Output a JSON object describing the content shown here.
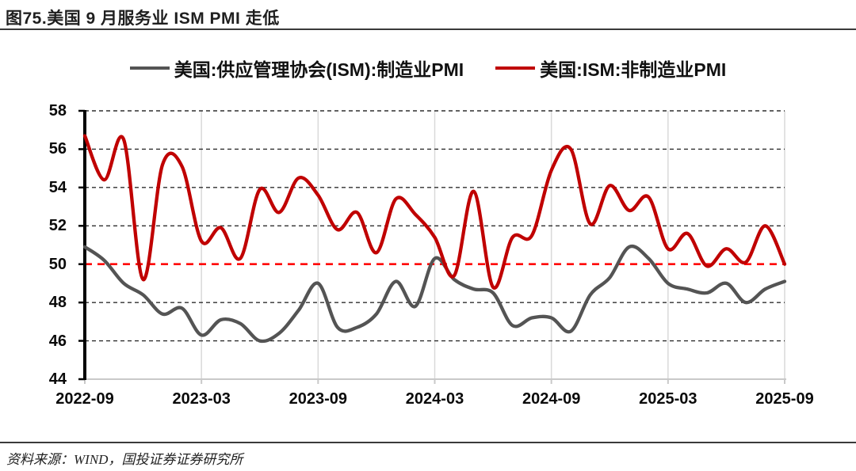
{
  "header": {
    "title": "图75.美国 9 月服务业 ISM PMI 走低"
  },
  "legend": [
    {
      "label": "美国:供应管理协会(ISM):制造业PMI",
      "color": "#545454"
    },
    {
      "label": "美国:ISM:非制造业PMI",
      "color": "#C00000"
    }
  ],
  "footer": {
    "source": "资料来源：WIND，国投证券证券研究所"
  },
  "colors": {
    "manufacturing_line": "#545454",
    "services_line": "#C00000",
    "reference_line": "#FF0000",
    "dashed_grid": "#2e2e2e",
    "light_grid": "#d9d9d9",
    "axis_black": "#000000",
    "axis_bottom": "#c9c9c9"
  },
  "chart_data": {
    "type": "line",
    "title": "图75.美国 9 月服务业 ISM PMI 走低",
    "xlabel": "",
    "ylabel": "",
    "ylim": [
      44,
      58
    ],
    "grid": "horizontal-dashed",
    "legend_position": "top-center",
    "smoothing": "spline",
    "x": [
      "2022-09",
      "2022-10",
      "2022-11",
      "2022-12",
      "2023-01",
      "2023-02",
      "2023-03",
      "2023-04",
      "2023-05",
      "2023-06",
      "2023-07",
      "2023-08",
      "2023-09",
      "2023-10",
      "2023-11",
      "2023-12",
      "2024-01",
      "2024-02",
      "2024-03",
      "2024-04",
      "2024-05",
      "2024-06",
      "2024-07",
      "2024-08",
      "2024-09",
      "2024-10",
      "2024-11",
      "2024-12",
      "2025-01",
      "2025-02",
      "2025-03",
      "2025-04",
      "2025-05",
      "2025-06",
      "2025-07",
      "2025-08",
      "2025-09"
    ],
    "series": [
      {
        "name": "美国:供应管理协会(ISM):制造业PMI",
        "color": "#545454",
        "values": [
          50.9,
          50.2,
          49.0,
          48.4,
          47.4,
          47.7,
          46.3,
          47.1,
          46.9,
          46.0,
          46.4,
          47.6,
          49.0,
          46.7,
          46.7,
          47.4,
          49.1,
          47.8,
          50.3,
          49.2,
          48.7,
          48.5,
          46.8,
          47.2,
          47.2,
          46.5,
          48.4,
          49.3,
          50.9,
          50.3,
          49.0,
          48.7,
          48.5,
          49.0,
          48.0,
          48.7,
          49.1
        ]
      },
      {
        "name": "美国:ISM:非制造业PMI",
        "color": "#C00000",
        "values": [
          56.7,
          54.4,
          56.5,
          49.2,
          55.2,
          55.1,
          51.2,
          51.9,
          50.3,
          53.9,
          52.7,
          54.5,
          53.6,
          51.8,
          52.7,
          50.6,
          53.4,
          52.6,
          51.4,
          49.4,
          53.8,
          48.8,
          51.4,
          51.5,
          54.9,
          56.0,
          52.1,
          54.1,
          52.8,
          53.5,
          50.8,
          51.6,
          49.9,
          50.8,
          50.1,
          52.0,
          50.0
        ]
      }
    ],
    "yticks": [
      44,
      46,
      48,
      50,
      52,
      54,
      56,
      58
    ],
    "xticks": [
      "2022-09",
      "2023-03",
      "2023-09",
      "2024-03",
      "2024-09",
      "2025-03",
      "2025-09"
    ],
    "reference_line": {
      "value": 50,
      "color": "#FF0000",
      "style": "dashed"
    }
  }
}
